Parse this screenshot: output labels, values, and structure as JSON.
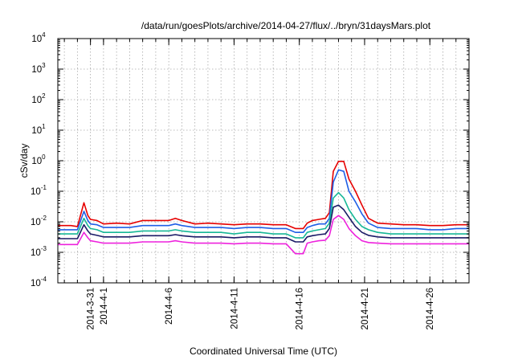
{
  "chart_data": {
    "type": "line",
    "title": "/data/run/goesPlots/archive/2014-04-27/flux/../bryn/31daysMars.plot",
    "xlabel": "Coordinated Universal Time (UTC)",
    "ylabel": "cSv/day",
    "yscale": "log",
    "ylim": [
      0.0001,
      10000
    ],
    "xlim_days": [
      -2.5,
      29.0
    ],
    "x_origin_date": "2014-03-31",
    "grid": true,
    "legend": "none",
    "x_ticks": [
      {
        "label": "2014-3-31",
        "day": 0
      },
      {
        "label": "2014-4-1",
        "day": 1
      },
      {
        "label": "2014-4-6",
        "day": 6
      },
      {
        "label": "2014-4-11",
        "day": 11
      },
      {
        "label": "2014-4-16",
        "day": 16
      },
      {
        "label": "2014-4-21",
        "day": 21
      },
      {
        "label": "2014-4-26",
        "day": 26
      }
    ],
    "y_ticks": [
      {
        "base": "10",
        "exp": "-4",
        "value": 0.0001
      },
      {
        "base": "10",
        "exp": "-3",
        "value": 0.001
      },
      {
        "base": "10",
        "exp": "-2",
        "value": 0.01
      },
      {
        "base": "10",
        "exp": "-1",
        "value": 0.1
      },
      {
        "base": "10",
        "exp": "0",
        "value": 1
      },
      {
        "base": "10",
        "exp": "1",
        "value": 10
      },
      {
        "base": "10",
        "exp": "2",
        "value": 100
      },
      {
        "base": "10",
        "exp": "3",
        "value": 1000
      },
      {
        "base": "10",
        "exp": "4",
        "value": 10000
      }
    ],
    "x": [
      -2.5,
      -1.5,
      -1.0,
      -0.5,
      -0.2,
      0.0,
      0.5,
      1.0,
      2.0,
      3.0,
      4.0,
      5.0,
      6.0,
      6.5,
      7.0,
      8.0,
      9.0,
      10.0,
      11.0,
      12.0,
      13.0,
      14.0,
      15.0,
      15.7,
      16.3,
      16.6,
      17.0,
      17.5,
      18.0,
      18.3,
      18.6,
      19.0,
      19.4,
      19.8,
      20.3,
      20.8,
      21.3,
      22.0,
      23.0,
      24.0,
      25.0,
      26.0,
      27.0,
      28.0,
      29.0
    ],
    "series": [
      {
        "color": "#e60000",
        "values": [
          0.0075,
          0.0075,
          0.007,
          0.042,
          0.016,
          0.012,
          0.011,
          0.0085,
          0.009,
          0.0085,
          0.011,
          0.011,
          0.011,
          0.013,
          0.011,
          0.0085,
          0.009,
          0.0085,
          0.008,
          0.0085,
          0.0085,
          0.008,
          0.008,
          0.006,
          0.006,
          0.009,
          0.011,
          0.012,
          0.013,
          0.02,
          0.45,
          0.95,
          0.95,
          0.25,
          0.1,
          0.035,
          0.013,
          0.009,
          0.0085,
          0.008,
          0.008,
          0.0075,
          0.0075,
          0.008,
          0.008
        ]
      },
      {
        "color": "#1f5fe6",
        "values": [
          0.0055,
          0.0055,
          0.0055,
          0.022,
          0.011,
          0.0085,
          0.008,
          0.0065,
          0.0065,
          0.0065,
          0.0075,
          0.0075,
          0.0075,
          0.0085,
          0.0075,
          0.0065,
          0.0065,
          0.0065,
          0.006,
          0.0065,
          0.0065,
          0.006,
          0.006,
          0.0045,
          0.0045,
          0.0065,
          0.0075,
          0.0085,
          0.0085,
          0.013,
          0.2,
          0.5,
          0.45,
          0.1,
          0.045,
          0.018,
          0.009,
          0.0065,
          0.006,
          0.006,
          0.006,
          0.0055,
          0.0055,
          0.006,
          0.006
        ]
      },
      {
        "color": "#17b897",
        "values": [
          0.004,
          0.004,
          0.004,
          0.013,
          0.0075,
          0.006,
          0.0055,
          0.0045,
          0.0045,
          0.0045,
          0.005,
          0.005,
          0.005,
          0.0055,
          0.005,
          0.0045,
          0.0045,
          0.0045,
          0.004,
          0.0045,
          0.0045,
          0.004,
          0.004,
          0.003,
          0.003,
          0.0045,
          0.005,
          0.0055,
          0.006,
          0.009,
          0.06,
          0.09,
          0.06,
          0.025,
          0.012,
          0.007,
          0.0055,
          0.0045,
          0.004,
          0.004,
          0.004,
          0.004,
          0.004,
          0.004,
          0.004
        ]
      },
      {
        "color": "#1a1a66",
        "values": [
          0.0028,
          0.0028,
          0.0028,
          0.008,
          0.005,
          0.004,
          0.0036,
          0.0032,
          0.0032,
          0.0032,
          0.0035,
          0.0035,
          0.0035,
          0.0038,
          0.0035,
          0.0032,
          0.0032,
          0.0032,
          0.003,
          0.0032,
          0.0032,
          0.003,
          0.003,
          0.0022,
          0.0022,
          0.0032,
          0.0035,
          0.0038,
          0.004,
          0.006,
          0.03,
          0.035,
          0.025,
          0.014,
          0.007,
          0.0045,
          0.0036,
          0.0032,
          0.003,
          0.003,
          0.003,
          0.003,
          0.003,
          0.003,
          0.003
        ]
      },
      {
        "color": "#ee22dd",
        "values": [
          0.0018,
          0.0018,
          0.0018,
          0.0045,
          0.003,
          0.0024,
          0.0022,
          0.002,
          0.002,
          0.002,
          0.0022,
          0.0022,
          0.0022,
          0.0024,
          0.0022,
          0.002,
          0.002,
          0.002,
          0.0019,
          0.002,
          0.002,
          0.0019,
          0.0019,
          0.0009,
          0.0009,
          0.002,
          0.0022,
          0.0024,
          0.0025,
          0.0035,
          0.012,
          0.016,
          0.012,
          0.006,
          0.0035,
          0.0024,
          0.0021,
          0.002,
          0.0019,
          0.0019,
          0.0019,
          0.0019,
          0.0019,
          0.0019,
          0.0019
        ]
      }
    ]
  }
}
